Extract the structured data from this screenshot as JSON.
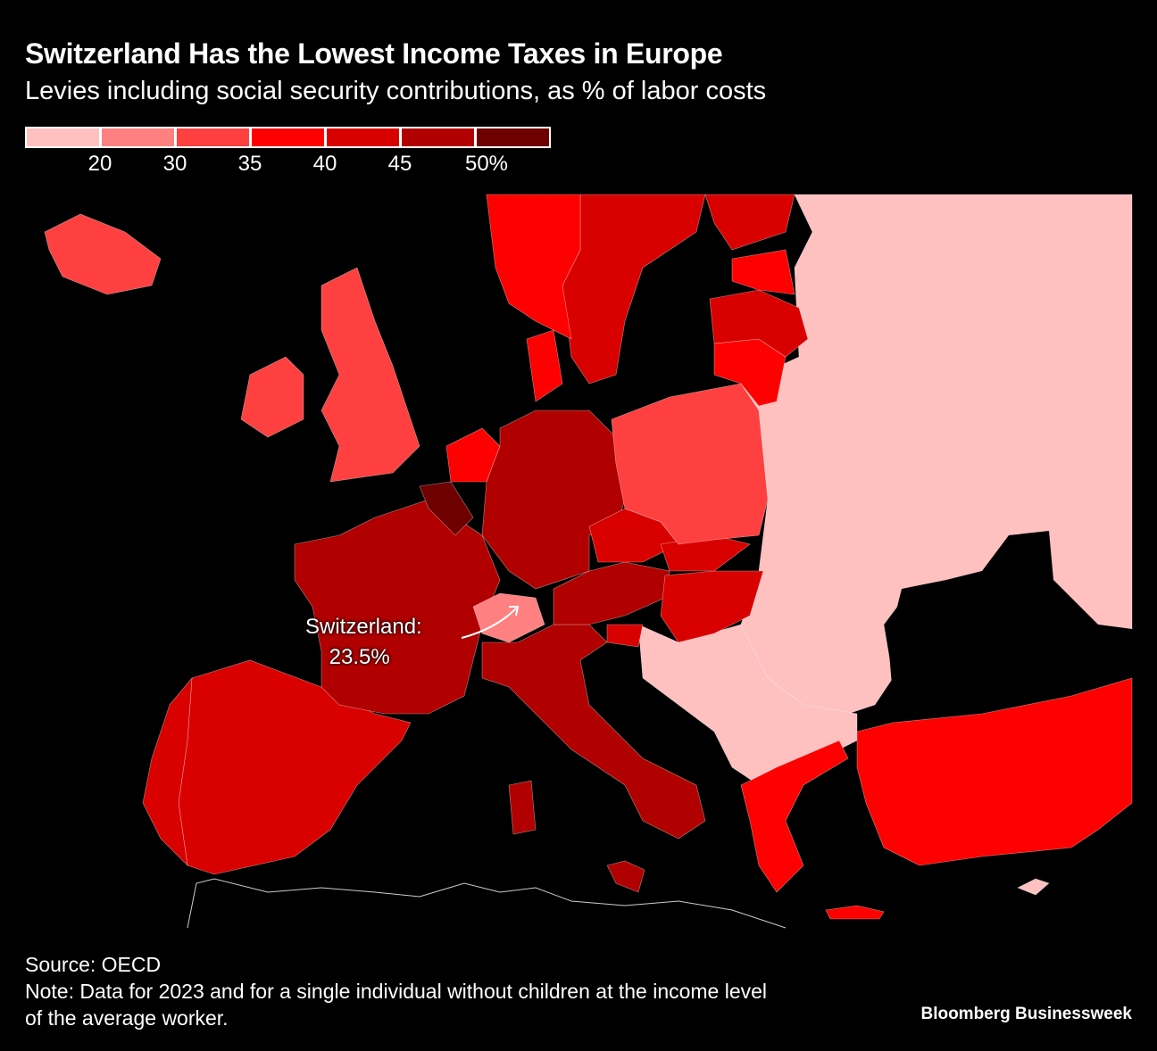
{
  "title": "Switzerland Has the Lowest Income Taxes in Europe",
  "subtitle": "Levies including social security contributions, as % of labor costs",
  "legend": {
    "colors": [
      "#ffc0c0",
      "#ff8080",
      "#ff4040",
      "#ff0000",
      "#d90000",
      "#b00000",
      "#6e0000"
    ],
    "labels": [
      "20",
      "30",
      "35",
      "40",
      "45",
      "50%"
    ]
  },
  "annotation": {
    "line1": "Switzerland:",
    "line2": "23.5%"
  },
  "region_bins": {
    "iceland": 2,
    "ireland": 2,
    "uk": 2,
    "norway": 3,
    "sweden": 4,
    "finland": 4,
    "estonia": 3,
    "latvia": 4,
    "lithuania": 3,
    "denmark": 3,
    "netherlands": 3,
    "belgium": 6,
    "germany": 5,
    "france": 5,
    "switzerland": 1,
    "italy": 5,
    "austria": 5,
    "czechia": 4,
    "slovakia": 4,
    "hungary": 4,
    "slovenia": 4,
    "poland": 2,
    "spain": 4,
    "portugal": 4,
    "greece": 3,
    "turkey": 3
  },
  "footer": {
    "source": "Source: OECD",
    "note_line1": "Note: Data for 2023 and for a single individual without children at the income level",
    "note_line2": "of the average worker.",
    "logo": "Bloomberg Businessweek"
  }
}
